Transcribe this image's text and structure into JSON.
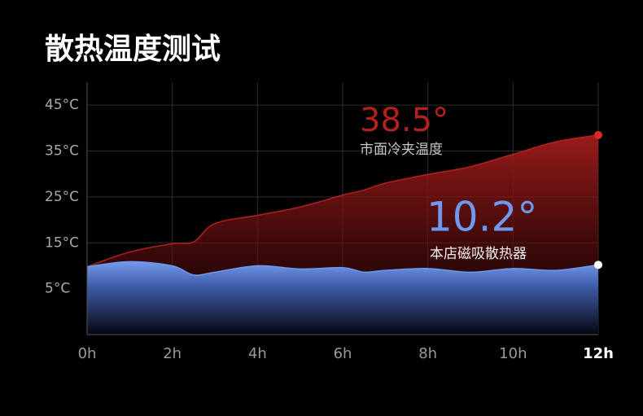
{
  "chart_data": {
    "type": "area",
    "title": "散热温度测试",
    "x": [
      0,
      1,
      2,
      2.5,
      3,
      4,
      5,
      6,
      6.5,
      7,
      8,
      9,
      10,
      11,
      12
    ],
    "xlim": [
      0,
      12
    ],
    "xticks": [
      {
        "value": 0,
        "label": "0h"
      },
      {
        "value": 2,
        "label": "2h"
      },
      {
        "value": 4,
        "label": "4h"
      },
      {
        "value": 6,
        "label": "6h"
      },
      {
        "value": 8,
        "label": "8h"
      },
      {
        "value": 10,
        "label": "10h"
      },
      {
        "value": 12,
        "label": "12h"
      }
    ],
    "ylim": [
      -5,
      50
    ],
    "yticks": [
      {
        "value": 5,
        "label": "5°C"
      },
      {
        "value": 15,
        "label": "15°C"
      },
      {
        "value": 25,
        "label": "25°C"
      },
      {
        "value": 35,
        "label": "35°C"
      },
      {
        "value": 45,
        "label": "45°C"
      }
    ],
    "grid": true,
    "series": [
      {
        "name": "市面冷夹温度",
        "color": "#b3211f",
        "values": [
          9.8,
          13,
          14.8,
          15.2,
          19.2,
          21,
          22.8,
          25.4,
          26.5,
          28,
          29.9,
          31.6,
          34.3,
          37,
          38.5
        ],
        "value_labels": [
          null,
          null,
          null,
          null,
          null,
          null,
          null,
          null,
          null,
          null,
          null,
          null,
          null,
          null,
          "38.5°"
        ]
      },
      {
        "name": "本店磁吸散热器",
        "color": "#6f98ee",
        "values": [
          9.8,
          10.9,
          10,
          8,
          8.6,
          10,
          9.3,
          9.6,
          8.6,
          9,
          9.4,
          8.6,
          9.4,
          9,
          10.2
        ],
        "value_labels": [
          null,
          null,
          null,
          null,
          null,
          null,
          null,
          null,
          null,
          null,
          null,
          null,
          null,
          null,
          "10.2°"
        ]
      }
    ]
  }
}
